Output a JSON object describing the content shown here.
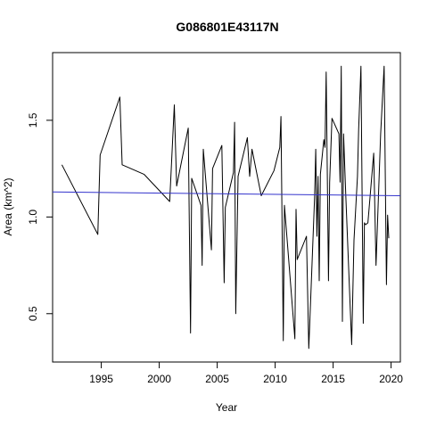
{
  "chart_data": {
    "type": "line",
    "title": "G086801E43117N",
    "xlabel": "Year",
    "ylabel": "Area (km^2)",
    "xlim": [
      1990.8,
      2020.8
    ],
    "ylim": [
      0.25,
      1.85
    ],
    "xticks": [
      1995,
      2000,
      2005,
      2010,
      2015,
      2020
    ],
    "yticks": [
      0.5,
      1.0,
      1.5
    ],
    "grid": false,
    "legend": "none",
    "series": [
      {
        "color": "#000000",
        "points": [
          [
            1991.6,
            1.27
          ],
          [
            1994.7,
            0.91
          ],
          [
            1994.9,
            1.32
          ],
          [
            1996.6,
            1.62
          ],
          [
            1996.8,
            1.27
          ],
          [
            1998.7,
            1.22
          ],
          [
            2000.9,
            1.08
          ],
          [
            2001.3,
            1.58
          ],
          [
            2001.5,
            1.16
          ],
          [
            2002.5,
            1.46
          ],
          [
            2002.7,
            0.4
          ],
          [
            2002.8,
            1.2
          ],
          [
            2003.6,
            1.06
          ],
          [
            2003.7,
            0.75
          ],
          [
            2003.8,
            1.35
          ],
          [
            2004.5,
            0.83
          ],
          [
            2004.6,
            1.25
          ],
          [
            2005.4,
            1.37
          ],
          [
            2005.6,
            0.66
          ],
          [
            2005.7,
            1.05
          ],
          [
            2006.4,
            1.23
          ],
          [
            2006.5,
            1.49
          ],
          [
            2006.6,
            0.5
          ],
          [
            2006.8,
            1.21
          ],
          [
            2007.6,
            1.41
          ],
          [
            2007.8,
            1.21
          ],
          [
            2008.0,
            1.35
          ],
          [
            2008.8,
            1.11
          ],
          [
            2009.9,
            1.24
          ],
          [
            2010.4,
            1.36
          ],
          [
            2010.5,
            1.52
          ],
          [
            2010.7,
            0.36
          ],
          [
            2010.8,
            1.06
          ],
          [
            2011.7,
            0.37
          ],
          [
            2011.8,
            1.04
          ],
          [
            2011.9,
            0.78
          ],
          [
            2012.7,
            0.9
          ],
          [
            2012.9,
            0.32
          ],
          [
            2013.4,
            1.1
          ],
          [
            2013.5,
            1.35
          ],
          [
            2013.6,
            0.9
          ],
          [
            2013.7,
            1.21
          ],
          [
            2013.8,
            0.67
          ],
          [
            2013.9,
            1.22
          ],
          [
            2014.2,
            1.4
          ],
          [
            2014.3,
            1.36
          ],
          [
            2014.4,
            1.75
          ],
          [
            2014.6,
            0.67
          ],
          [
            2014.7,
            1.18
          ],
          [
            2014.9,
            1.51
          ],
          [
            2015.5,
            1.43
          ],
          [
            2015.6,
            1.18
          ],
          [
            2015.7,
            1.78
          ],
          [
            2015.8,
            0.46
          ],
          [
            2015.9,
            1.43
          ],
          [
            2016.1,
            1.1
          ],
          [
            2016.6,
            0.34
          ],
          [
            2016.8,
            0.88
          ],
          [
            2017.1,
            1.21
          ],
          [
            2017.2,
            1.45
          ],
          [
            2017.4,
            1.78
          ],
          [
            2017.6,
            0.45
          ],
          [
            2017.7,
            0.97
          ],
          [
            2017.8,
            0.96
          ],
          [
            2018.0,
            0.97
          ],
          [
            2018.5,
            1.33
          ],
          [
            2018.7,
            0.75
          ],
          [
            2019.1,
            1.43
          ],
          [
            2019.4,
            1.78
          ],
          [
            2019.6,
            0.65
          ],
          [
            2019.7,
            1.01
          ],
          [
            2019.8,
            0.89
          ]
        ]
      },
      {
        "color": "#3333cc",
        "points": [
          [
            1990.8,
            1.13
          ],
          [
            2020.8,
            1.11
          ]
        ]
      }
    ]
  }
}
